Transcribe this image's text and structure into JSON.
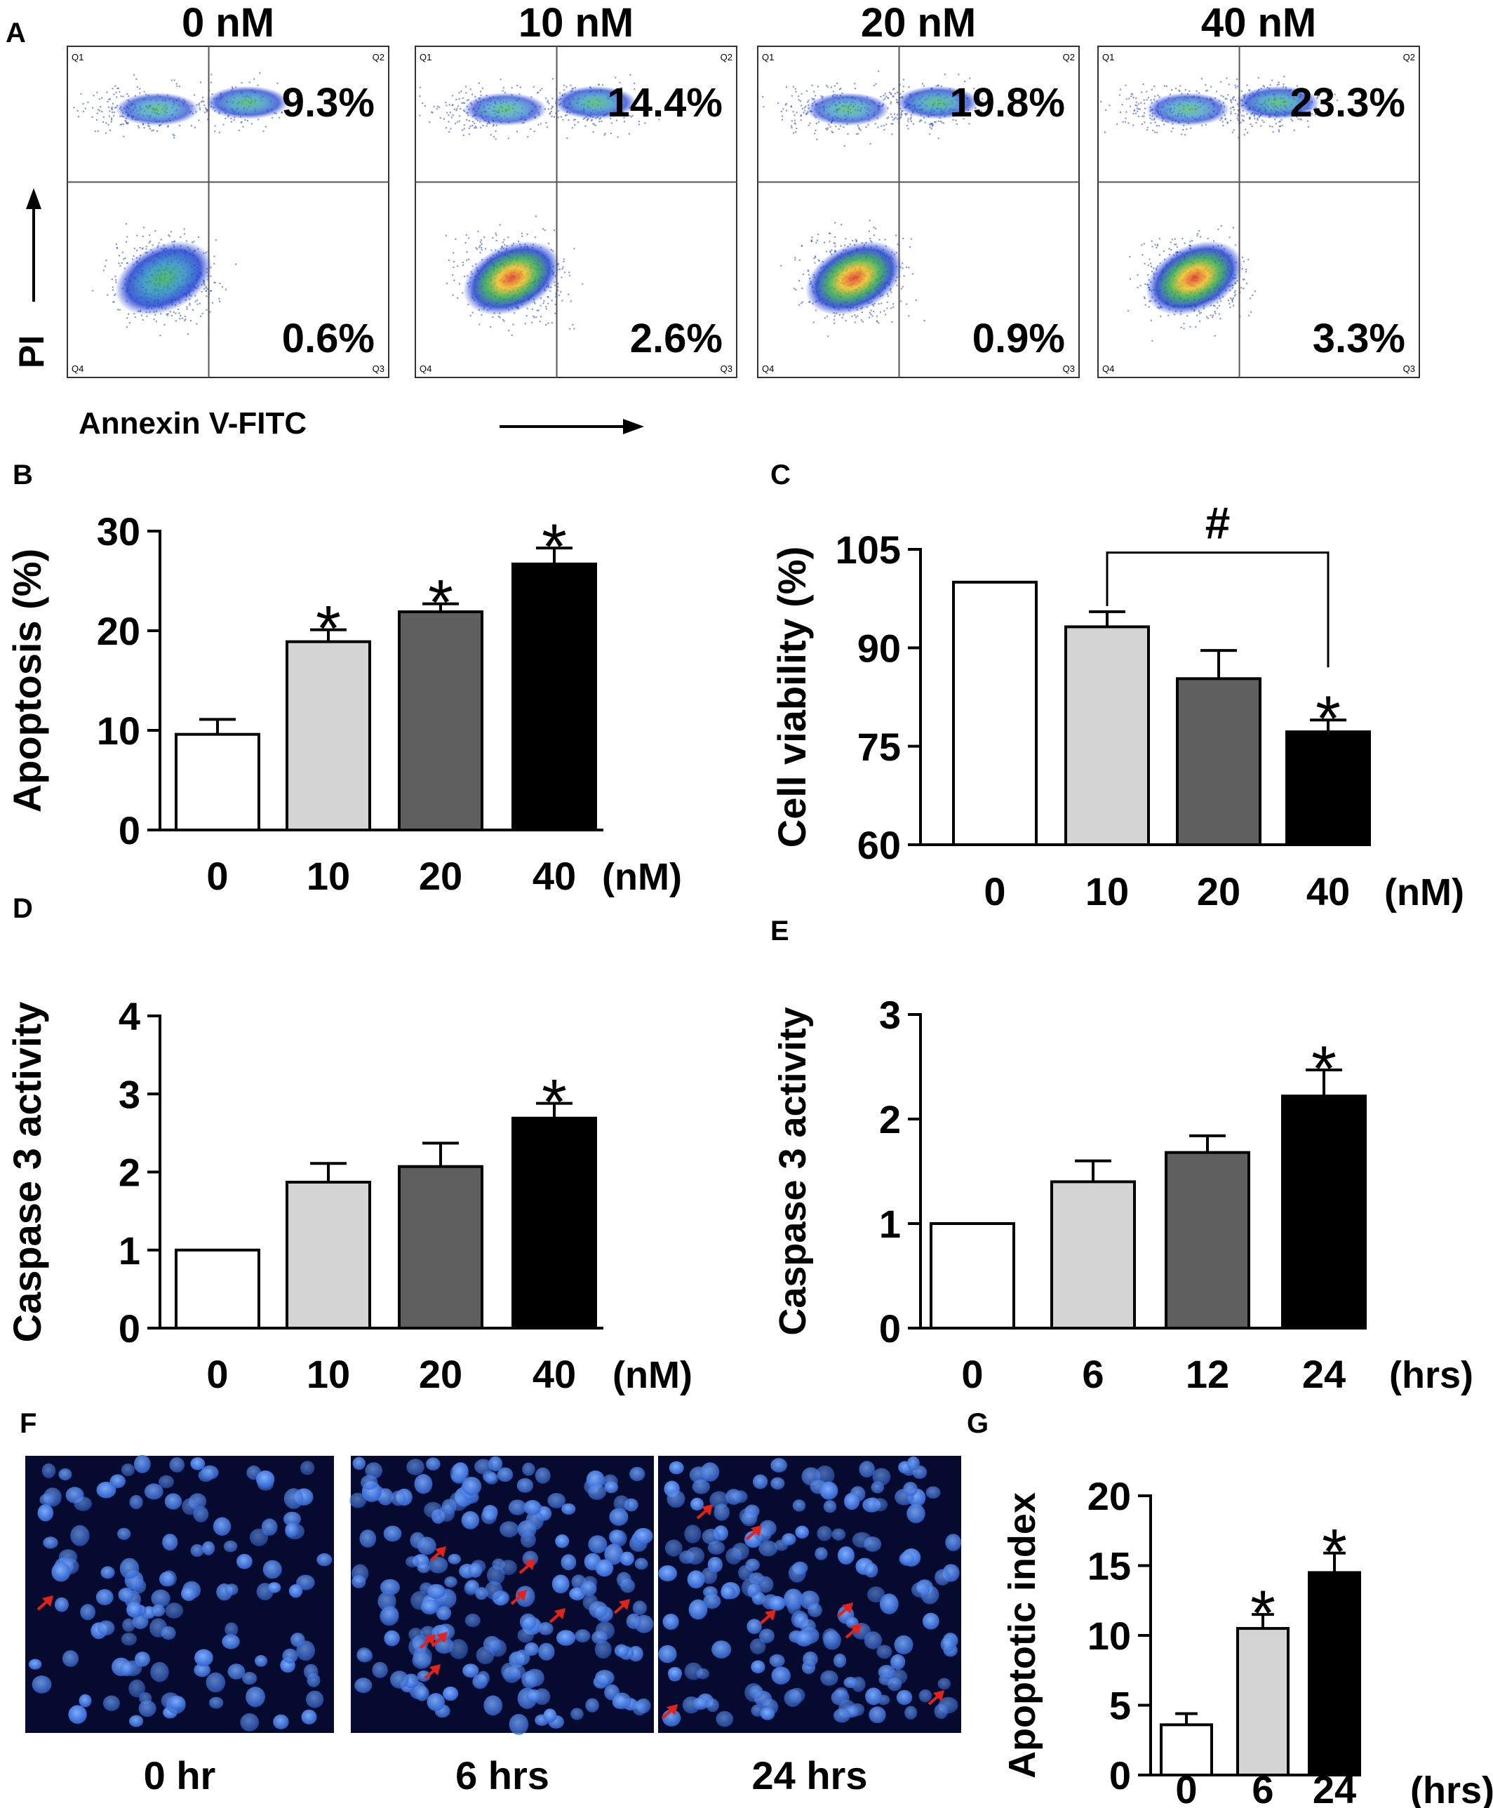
{
  "panels": {
    "A": {
      "letter": "A",
      "x_axis_label": "Annexin V-FITC",
      "y_axis_label": "PI",
      "plots": [
        {
          "title": "0 nM",
          "q2": "9.3%",
          "q3": "0.6%"
        },
        {
          "title": "10 nM",
          "q2": "14.4%",
          "q3": "2.6%"
        },
        {
          "title": "20 nM",
          "q2": "19.8%",
          "q3": "0.9%"
        },
        {
          "title": "40 nM",
          "q2": "23.3%",
          "q3": "3.3%"
        }
      ],
      "quadrant_tags": {
        "q1": "Q1",
        "q2": "Q2",
        "q3": "Q3",
        "q4": "Q4"
      }
    },
    "B": {
      "letter": "B"
    },
    "C": {
      "letter": "C",
      "bracket_label": "#"
    },
    "D": {
      "letter": "D"
    },
    "E": {
      "letter": "E"
    },
    "F": {
      "letter": "F",
      "labels": [
        "0 hr",
        "6 hrs",
        "24 hrs"
      ]
    },
    "G": {
      "letter": "G"
    }
  },
  "colors": {
    "white": "#ffffff",
    "light_gray": "#d4d4d4",
    "dark_gray": "#5f5f5f",
    "black": "#000000",
    "arrow_red": "#e3231b",
    "nuclei_blue": "#3c78e0",
    "micrograph_bg": "#050a2e"
  },
  "chart_data": [
    {
      "panel": "B",
      "type": "bar",
      "ylabel": "Apoptosis (%)",
      "unit_label": "(nM)",
      "categories": [
        "0",
        "10",
        "20",
        "40"
      ],
      "values": [
        9.6,
        18.9,
        21.9,
        26.7
      ],
      "errors": [
        1.5,
        1.2,
        0.8,
        1.6
      ],
      "significance": [
        "",
        "*",
        "*",
        "*"
      ],
      "ylim": [
        0,
        30
      ],
      "yticks": [
        "0",
        "10",
        "20",
        "30"
      ],
      "colors": [
        "#ffffff",
        "#d4d4d4",
        "#5f5f5f",
        "#000000"
      ]
    },
    {
      "panel": "C",
      "type": "bar",
      "ylabel": "Cell viability (%)",
      "unit_label": "(nM)",
      "categories": [
        "0",
        "10",
        "20",
        "40"
      ],
      "values": [
        100,
        93.2,
        85.3,
        77.2
      ],
      "errors": [
        0,
        2.3,
        4.3,
        1.8
      ],
      "significance": [
        "",
        "",
        "",
        "*"
      ],
      "ylim": [
        60,
        105
      ],
      "yticks": [
        "60",
        "75",
        "90",
        "105"
      ],
      "bracket": {
        "from": 1,
        "to": 3,
        "label": "#"
      },
      "colors": [
        "#ffffff",
        "#d4d4d4",
        "#5f5f5f",
        "#000000"
      ]
    },
    {
      "panel": "D",
      "type": "bar",
      "ylabel": "Caspase 3 activity",
      "unit_label": "(nM)",
      "categories": [
        "0",
        "10",
        "20",
        "40"
      ],
      "values": [
        1.0,
        1.87,
        2.07,
        2.69
      ],
      "errors": [
        0,
        0.24,
        0.3,
        0.19
      ],
      "significance": [
        "",
        "",
        "",
        "*"
      ],
      "ylim": [
        0,
        4
      ],
      "yticks": [
        "0",
        "1",
        "2",
        "3",
        "4"
      ],
      "colors": [
        "#ffffff",
        "#d4d4d4",
        "#5f5f5f",
        "#000000"
      ]
    },
    {
      "panel": "E",
      "type": "bar",
      "ylabel": "Caspase 3 activity",
      "unit_label": "(hrs)",
      "categories": [
        "0",
        "6",
        "12",
        "24"
      ],
      "values": [
        1.0,
        1.4,
        1.68,
        2.22
      ],
      "errors": [
        0,
        0.2,
        0.16,
        0.25
      ],
      "significance": [
        "",
        "",
        "",
        "*"
      ],
      "ylim": [
        0,
        3
      ],
      "yticks": [
        "0",
        "1",
        "2",
        "3"
      ],
      "colors": [
        "#ffffff",
        "#d4d4d4",
        "#5f5f5f",
        "#000000"
      ]
    },
    {
      "panel": "G",
      "type": "bar",
      "ylabel": "Apoptotic index",
      "unit_label": "(hrs)",
      "categories": [
        "0",
        "6",
        "24"
      ],
      "values": [
        3.6,
        10.5,
        14.5
      ],
      "errors": [
        0.8,
        1.0,
        1.4
      ],
      "significance": [
        "",
        "*",
        "*"
      ],
      "ylim": [
        0,
        20
      ],
      "yticks": [
        "0",
        "5",
        "10",
        "15",
        "20"
      ],
      "colors": [
        "#ffffff",
        "#d4d4d4",
        "#000000"
      ]
    }
  ]
}
